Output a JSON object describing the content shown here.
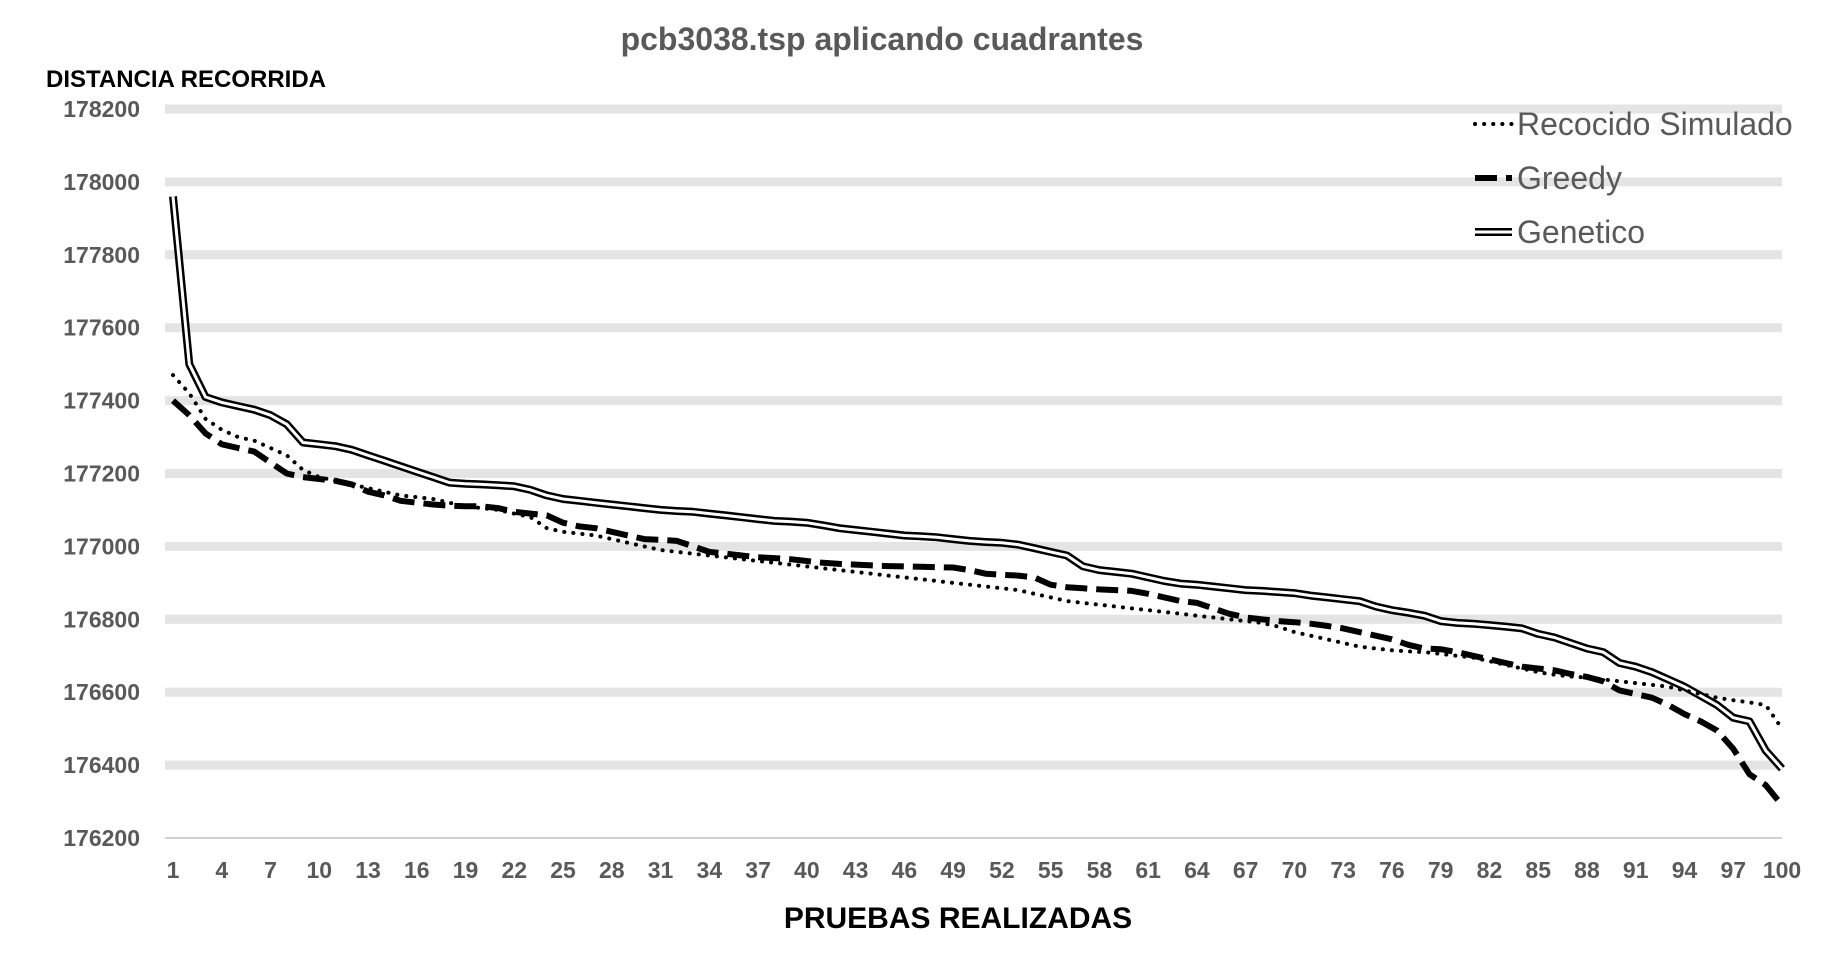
{
  "chart_data": {
    "type": "line",
    "title": "pcb3038.tsp aplicando cuadrantes",
    "ylabel": "DISTANCIA RECORRIDA",
    "xlabel": "PRUEBAS REALIZADAS",
    "ylim": [
      176200,
      178200
    ],
    "yticks": [
      176200,
      176400,
      176600,
      176800,
      177000,
      177200,
      177400,
      177600,
      177800,
      178000,
      178200
    ],
    "ytick_labels": [
      "176200",
      "176400",
      "176600",
      "176800",
      "177000",
      "177200",
      "177400",
      "177600",
      "177800",
      "178000",
      "178200"
    ],
    "xlim": [
      1,
      100
    ],
    "xticks": [
      1,
      4,
      7,
      10,
      13,
      16,
      19,
      22,
      25,
      28,
      31,
      34,
      37,
      40,
      43,
      46,
      49,
      52,
      55,
      58,
      61,
      64,
      67,
      70,
      73,
      76,
      79,
      82,
      85,
      88,
      91,
      94,
      97,
      100
    ],
    "xtick_labels": [
      "1",
      "4",
      "7",
      "10",
      "13",
      "16",
      "19",
      "22",
      "25",
      "28",
      "31",
      "34",
      "37",
      "40",
      "43",
      "46",
      "49",
      "52",
      "55",
      "58",
      "61",
      "64",
      "67",
      "70",
      "73",
      "76",
      "79",
      "82",
      "85",
      "88",
      "91",
      "94",
      "97",
      "100"
    ],
    "grid": true,
    "legend_position": "top-right",
    "series": [
      {
        "name": "Recocido Simulado",
        "style": "dotted",
        "color": "#000000",
        "values": [
          177470,
          177420,
          177350,
          177320,
          177300,
          177290,
          177270,
          177250,
          177210,
          177190,
          177180,
          177170,
          177160,
          177150,
          177140,
          177135,
          177130,
          177120,
          177110,
          177105,
          177100,
          177090,
          177080,
          177050,
          177040,
          177035,
          177030,
          177020,
          177010,
          177000,
          176990,
          176985,
          176980,
          176975,
          176970,
          176965,
          176960,
          176955,
          176950,
          176945,
          176940,
          176935,
          176930,
          176925,
          176920,
          176915,
          176910,
          176905,
          176900,
          176895,
          176890,
          176885,
          176880,
          176870,
          176860,
          176850,
          176845,
          176840,
          176835,
          176830,
          176825,
          176820,
          176815,
          176810,
          176805,
          176800,
          176795,
          176790,
          176780,
          176765,
          176755,
          176745,
          176735,
          176725,
          176720,
          176715,
          176712,
          176710,
          176705,
          176700,
          176695,
          176685,
          176675,
          176665,
          176655,
          176648,
          176643,
          176640,
          176635,
          176630,
          176625,
          176620,
          176615,
          176605,
          176595,
          176585,
          176578,
          176572,
          176565,
          176500
        ]
      },
      {
        "name": "Greedy",
        "style": "dashed",
        "color": "#000000",
        "values": [
          177400,
          177360,
          177310,
          177280,
          177270,
          177260,
          177230,
          177200,
          177190,
          177185,
          177180,
          177170,
          177150,
          177140,
          177125,
          177120,
          177115,
          177112,
          177110,
          177110,
          177105,
          177095,
          177090,
          177085,
          177065,
          177055,
          177050,
          177040,
          177030,
          177020,
          177018,
          177015,
          177000,
          176985,
          176980,
          176975,
          176970,
          176968,
          176965,
          176960,
          176955,
          176952,
          176950,
          176948,
          176946,
          176945,
          176944,
          176943,
          176942,
          176935,
          176925,
          176922,
          176920,
          176915,
          176895,
          176888,
          176885,
          176882,
          176880,
          176878,
          176870,
          176860,
          176850,
          176845,
          176830,
          176815,
          176805,
          176800,
          176795,
          176792,
          176788,
          176782,
          176775,
          176765,
          176755,
          176745,
          176730,
          176720,
          176718,
          176710,
          176700,
          176690,
          176680,
          176670,
          176665,
          176660,
          176650,
          176642,
          176630,
          176605,
          176595,
          176585,
          176565,
          176540,
          176520,
          176495,
          176445,
          176375,
          176345,
          176290
        ]
      },
      {
        "name": "Genetico",
        "style": "double",
        "color": "#000000",
        "values": [
          177960,
          177500,
          177410,
          177395,
          177385,
          177375,
          177360,
          177335,
          177285,
          177280,
          177275,
          177265,
          177250,
          177235,
          177220,
          177205,
          177190,
          177175,
          177172,
          177170,
          177168,
          177165,
          177155,
          177140,
          177130,
          177125,
          177120,
          177115,
          177110,
          177105,
          177100,
          177097,
          177095,
          177090,
          177085,
          177080,
          177075,
          177070,
          177068,
          177065,
          177058,
          177050,
          177045,
          177040,
          177035,
          177030,
          177028,
          177025,
          177020,
          177015,
          177012,
          177010,
          177005,
          176995,
          176985,
          176975,
          176945,
          176935,
          176930,
          176925,
          176915,
          176905,
          176898,
          176895,
          176890,
          176885,
          176880,
          176878,
          176875,
          176872,
          176865,
          176860,
          176855,
          176850,
          176835,
          176825,
          176818,
          176810,
          176795,
          176790,
          176788,
          176784,
          176780,
          176775,
          176760,
          176750,
          176735,
          176720,
          176710,
          176680,
          176670,
          176655,
          176635,
          176615,
          176590,
          176565,
          176530,
          176520,
          176440,
          176390
        ]
      }
    ]
  }
}
